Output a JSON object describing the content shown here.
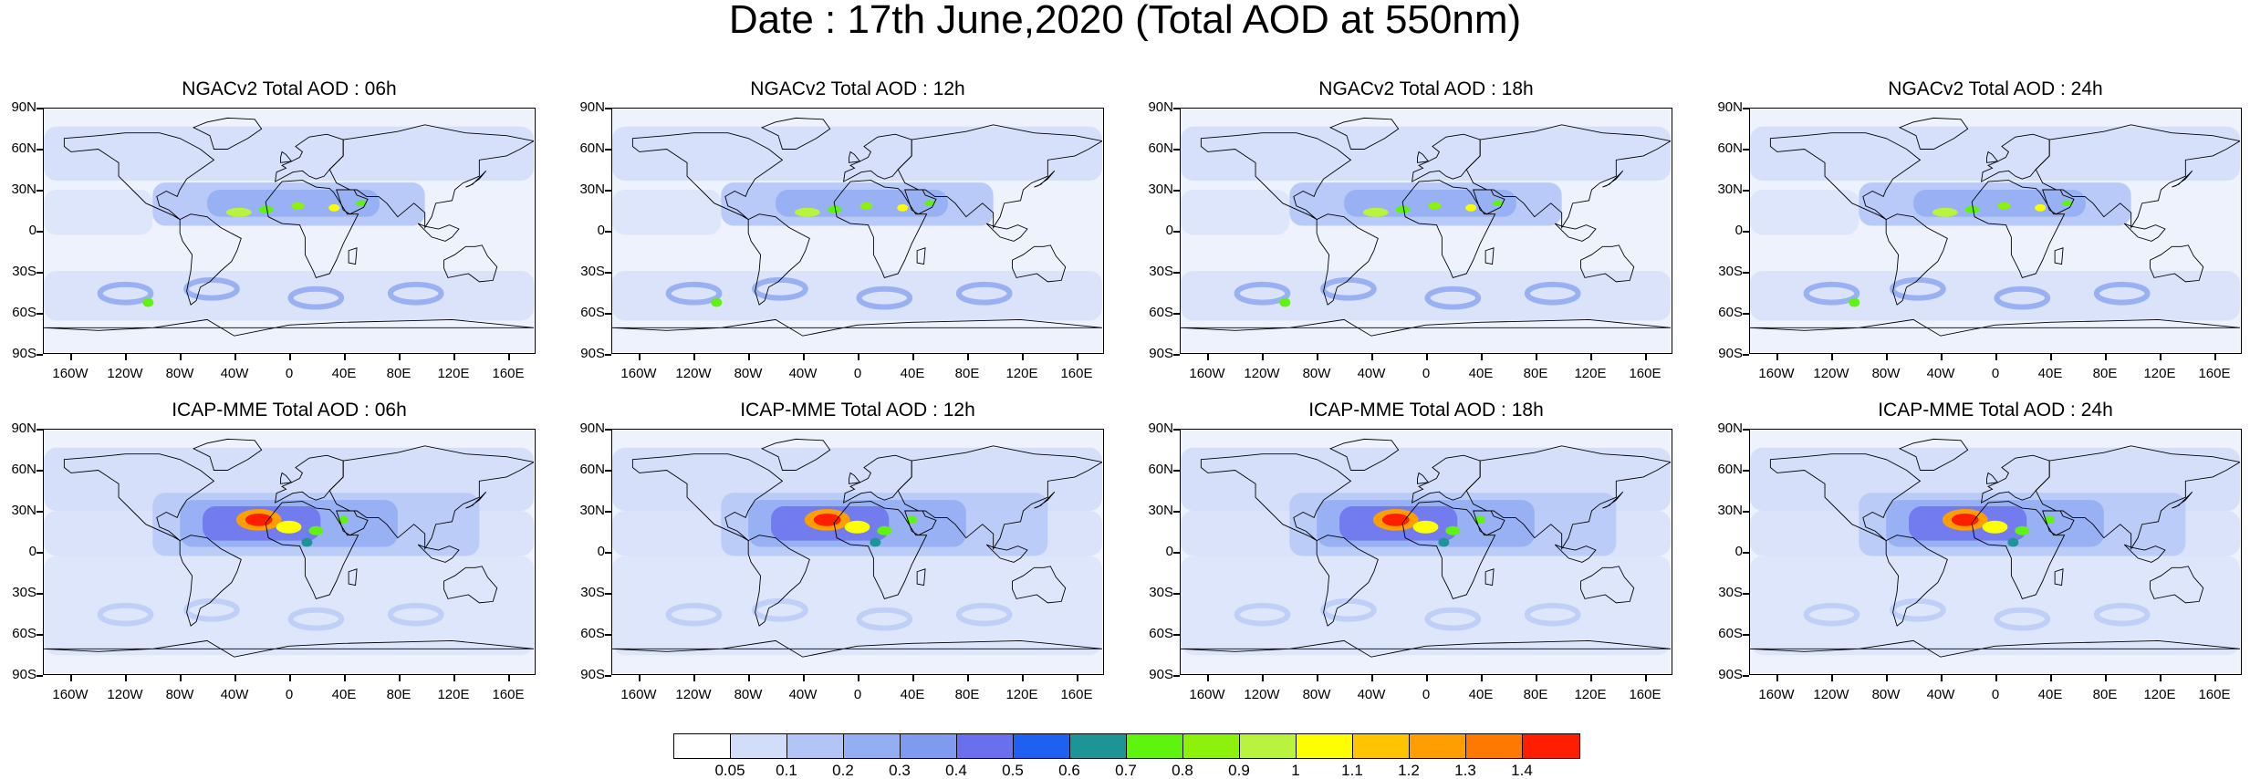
{
  "title": "Date : 17th June,2020 (Total AOD at 550nm)",
  "panels": [
    {
      "title": "NGACv2 Total AOD : 06h",
      "dust_plume": "ngac"
    },
    {
      "title": "NGACv2 Total AOD : 12h",
      "dust_plume": "ngac"
    },
    {
      "title": "NGACv2 Total AOD : 18h",
      "dust_plume": "ngac"
    },
    {
      "title": "NGACv2 Total AOD : 24h",
      "dust_plume": "ngac"
    },
    {
      "title": "ICAP-MME Total AOD : 06h",
      "dust_plume": "icap"
    },
    {
      "title": "ICAP-MME Total AOD : 12h",
      "dust_plume": "icap"
    },
    {
      "title": "ICAP-MME Total AOD : 18h",
      "dust_plume": "icap"
    },
    {
      "title": "ICAP-MME Total AOD : 24h",
      "dust_plume": "icap"
    }
  ],
  "lat_labels": [
    "90N",
    "60N",
    "30N",
    "0",
    "30S",
    "60S",
    "90S"
  ],
  "lon_labels": [
    "160W",
    "120W",
    "80W",
    "40W",
    "0",
    "40E",
    "80E",
    "120E",
    "160E"
  ],
  "colorbar": {
    "labels": [
      "0.05",
      "0.1",
      "0.2",
      "0.3",
      "0.4",
      "0.5",
      "0.6",
      "0.7",
      "0.8",
      "0.9",
      "1",
      "1.1",
      "1.2",
      "1.3",
      "1.4"
    ],
    "colors": [
      "#ffffff",
      "#d2ddfa",
      "#b3c5f7",
      "#94aef3",
      "#7e9bf0",
      "#6a6fee",
      "#1e61f0",
      "#1d9496",
      "#5ff40e",
      "#8cf20c",
      "#b9f33e",
      "#fdff00",
      "#ffc400",
      "#ff9e00",
      "#ff7900",
      "#ff1e00"
    ]
  }
}
